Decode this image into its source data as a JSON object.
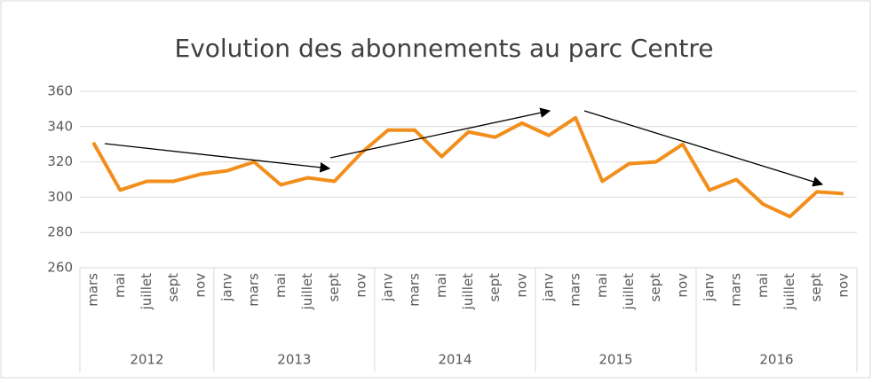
{
  "chart_data": {
    "type": "line",
    "title": "Evolution des abonnements au parc Centre",
    "categories": [
      "mars",
      "mai",
      "juillet",
      "sept",
      "nov",
      "janv",
      "mars",
      "mai",
      "juillet",
      "sept",
      "nov",
      "janv",
      "mars",
      "mai",
      "juillet",
      "sept",
      "nov",
      "janv",
      "mars",
      "mai",
      "juillet",
      "sept",
      "nov",
      "janv",
      "mars",
      "mai",
      "juillet",
      "sept",
      "nov"
    ],
    "groups": [
      {
        "label": "2012",
        "size": 5
      },
      {
        "label": "2013",
        "size": 6
      },
      {
        "label": "2014",
        "size": 6
      },
      {
        "label": "2015",
        "size": 6
      },
      {
        "label": "2016",
        "size": 6
      }
    ],
    "series": [
      {
        "color": "#f28e1c",
        "values": [
          331,
          304,
          309,
          309,
          313,
          315,
          320,
          307,
          311,
          309,
          325,
          338,
          338,
          323,
          337,
          334,
          342,
          335,
          345,
          309,
          319,
          320,
          330,
          304,
          310,
          296,
          289,
          303,
          302
        ]
      }
    ],
    "ylim": [
      260,
      360
    ],
    "yticks": [
      260,
      280,
      300,
      320,
      340,
      360
    ],
    "grid": true
  }
}
